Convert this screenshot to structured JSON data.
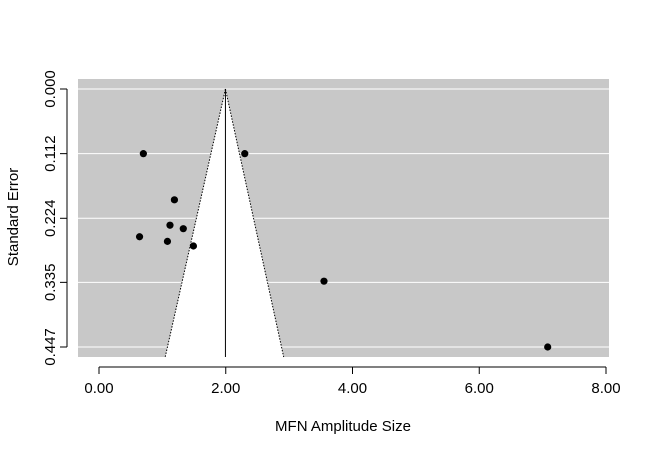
{
  "chart_data": {
    "type": "scatter",
    "subtype": "funnel-plot",
    "title": "",
    "xlabel": "MFN Amplitude Size",
    "ylabel": "Standard Error",
    "xlim": [
      -0.3,
      8.0
    ],
    "ylim": [
      0.447,
      0.0
    ],
    "y_axis_reversed": true,
    "x_ticks": [
      0,
      2,
      4,
      6,
      8
    ],
    "x_tick_labels": [
      "0.00",
      "2.00",
      "4.00",
      "6.00",
      "8.00"
    ],
    "y_ticks": [
      0.0,
      0.112,
      0.224,
      0.335,
      0.447
    ],
    "y_tick_labels": [
      "0.000",
      "0.112",
      "0.224",
      "0.335",
      "0.447"
    ],
    "grid": "horizontal",
    "funnel": {
      "center": 1.995,
      "bottom_se": 0.447,
      "bottom_left": 1.08,
      "bottom_right": 2.88
    },
    "points": [
      {
        "x": 0.7,
        "y": 0.112
      },
      {
        "x": 2.3,
        "y": 0.112
      },
      {
        "x": 1.19,
        "y": 0.192
      },
      {
        "x": 1.12,
        "y": 0.236
      },
      {
        "x": 1.33,
        "y": 0.242
      },
      {
        "x": 0.64,
        "y": 0.256
      },
      {
        "x": 1.08,
        "y": 0.264
      },
      {
        "x": 1.49,
        "y": 0.272
      },
      {
        "x": 3.55,
        "y": 0.333
      },
      {
        "x": 7.08,
        "y": 0.447
      }
    ],
    "colors": {
      "background_panel": "#c8c8c8",
      "funnel_fill": "#ffffff",
      "gridline": "#ffffff",
      "point": "#000000",
      "axis": "#000000"
    }
  }
}
